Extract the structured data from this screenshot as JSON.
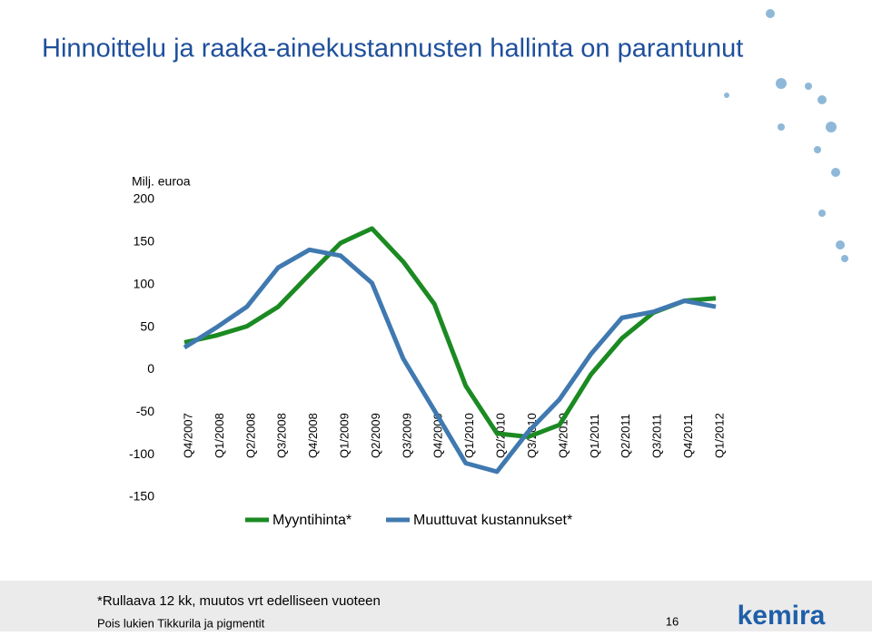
{
  "chart_data": {
    "type": "line",
    "title": "Hinnoittelu ja raaka-ainekustannusten hallinta on parantunut",
    "y_label": "Milj. euroa",
    "categories": [
      "Q4/2007",
      "Q1/2008",
      "Q2/2008",
      "Q3/2008",
      "Q4/2008",
      "Q1/2009",
      "Q2/2009",
      "Q3/2009",
      "Q4/2009",
      "Q1/2010",
      "Q2/2010",
      "Q3/2010",
      "Q4/2010",
      "Q1/2011",
      "Q2/2011",
      "Q3/2011",
      "Q4/2011",
      "Q1/2012"
    ],
    "series": [
      {
        "name": "Myyntihinta*",
        "color": "#1b8a22",
        "values": [
          32,
          40,
          51,
          74,
          112,
          149,
          166,
          127,
          77,
          -19,
          -75,
          -79,
          -65,
          -6,
          37,
          67,
          81,
          84
        ]
      },
      {
        "name": "Muuttuvat kustannukset*",
        "color": "#4079b0",
        "values": [
          26,
          49,
          74,
          120,
          141,
          134,
          102,
          13,
          -48,
          -110,
          -120,
          -73,
          -35,
          18,
          61,
          68,
          81,
          74
        ]
      }
    ],
    "ylim": [
      -150,
      200
    ],
    "yticks": [
      -150,
      -100,
      -50,
      0,
      50,
      100,
      150,
      200
    ],
    "grid": false
  },
  "footer": {
    "note": "*Rullaava 12 kk, muutos vrt edelliseen vuoteen",
    "source": "Pois lukien Tikkurila ja pigmentit",
    "page_number": "16",
    "logo": "kemira"
  }
}
